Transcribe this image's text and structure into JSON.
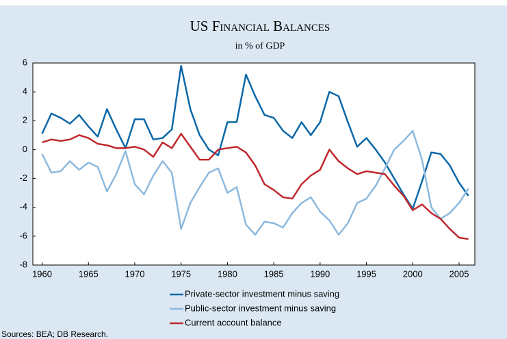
{
  "chart_data": {
    "type": "line",
    "title": "US Financial Balances",
    "subtitle": "in % of GDP",
    "source": "Sources: BEA; DB Research.",
    "x": [
      1960,
      1961,
      1962,
      1963,
      1964,
      1965,
      1966,
      1967,
      1968,
      1969,
      1970,
      1971,
      1972,
      1973,
      1974,
      1975,
      1976,
      1977,
      1978,
      1979,
      1980,
      1981,
      1982,
      1983,
      1984,
      1985,
      1986,
      1987,
      1988,
      1989,
      1990,
      1991,
      1992,
      1993,
      1994,
      1995,
      1996,
      1997,
      1998,
      1999,
      2000,
      2001,
      2002,
      2003,
      2004,
      2005,
      2006
    ],
    "series": [
      {
        "name": "Private-sector investment minus saving",
        "color": "#0b68a8",
        "values": [
          1.1,
          2.5,
          2.2,
          1.8,
          2.4,
          1.6,
          0.9,
          2.8,
          1.4,
          0.1,
          2.1,
          2.1,
          0.7,
          0.8,
          1.4,
          5.8,
          2.8,
          1.0,
          0.0,
          -0.4,
          1.9,
          1.9,
          5.2,
          3.7,
          2.4,
          2.2,
          1.3,
          0.8,
          1.9,
          1.0,
          1.9,
          4.0,
          3.7,
          1.9,
          0.2,
          0.8,
          0.0,
          -0.9,
          -2.0,
          -3.1,
          -4.1,
          -2.2,
          -0.2,
          -0.3,
          -1.1,
          -2.3,
          -3.2
        ]
      },
      {
        "name": "Public-sector investment minus saving",
        "color": "#8db9de",
        "values": [
          -0.3,
          -1.6,
          -1.5,
          -0.8,
          -1.4,
          -0.9,
          -1.2,
          -2.9,
          -1.7,
          -0.1,
          -2.4,
          -3.1,
          -1.8,
          -0.8,
          -1.6,
          -5.5,
          -3.7,
          -2.6,
          -1.6,
          -1.3,
          -3.0,
          -2.6,
          -5.2,
          -5.9,
          -5.0,
          -5.1,
          -5.4,
          -4.4,
          -3.7,
          -3.3,
          -4.3,
          -4.9,
          -5.9,
          -5.1,
          -3.7,
          -3.4,
          -2.5,
          -1.3,
          0.0,
          0.6,
          1.3,
          -0.7,
          -4.0,
          -4.8,
          -4.4,
          -3.7,
          -2.7
        ]
      },
      {
        "name": "Current account balance",
        "color": "#c0282d",
        "values": [
          0.5,
          0.7,
          0.6,
          0.7,
          1.0,
          0.8,
          0.4,
          0.3,
          0.1,
          0.1,
          0.2,
          0.0,
          -0.5,
          0.5,
          0.1,
          1.1,
          0.2,
          -0.7,
          -0.7,
          0.0,
          0.1,
          0.2,
          -0.2,
          -1.1,
          -2.4,
          -2.8,
          -3.3,
          -3.4,
          -2.4,
          -1.8,
          -1.4,
          0.0,
          -0.8,
          -1.3,
          -1.7,
          -1.5,
          -1.6,
          -1.7,
          -2.5,
          -3.2,
          -4.2,
          -3.8,
          -4.4,
          -4.8,
          -5.5,
          -6.1,
          -6.2
        ]
      }
    ],
    "xlim": [
      1959,
      2006.7
    ],
    "xticks": [
      1960,
      1965,
      1970,
      1975,
      1980,
      1985,
      1990,
      1995,
      2000,
      2005
    ],
    "ylim": [
      -8,
      6
    ],
    "yticks": [
      -8,
      -6,
      -4,
      -2,
      0,
      2,
      4,
      6
    ],
    "grid": false
  }
}
